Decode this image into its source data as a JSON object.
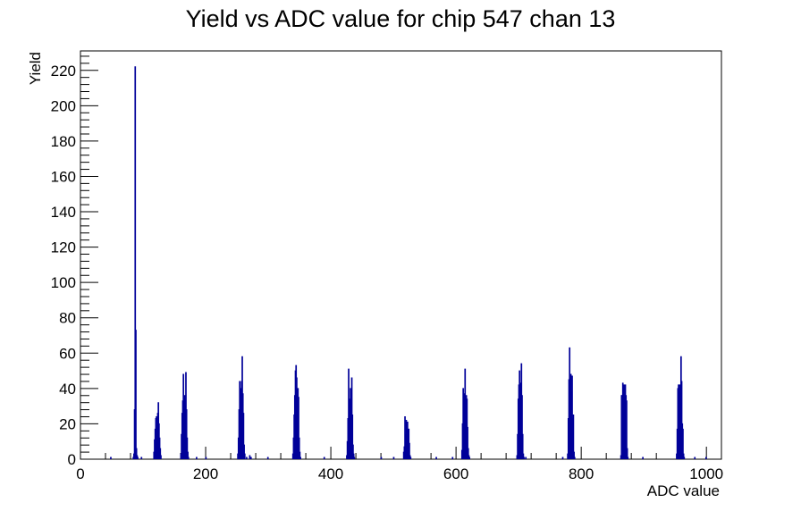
{
  "chart_data": {
    "type": "histogram",
    "title": "Yield vs ADC value for chip 547 chan 13",
    "xlabel": "ADC value",
    "ylabel": "Yield",
    "xlim": [
      0,
      1024
    ],
    "ylim": [
      0,
      231
    ],
    "xticks": [
      0,
      200,
      400,
      600,
      800,
      1000
    ],
    "yticks": [
      0,
      20,
      40,
      60,
      80,
      100,
      120,
      140,
      160,
      180,
      200,
      220
    ],
    "grid": false,
    "legend": "none",
    "line_color": "#000099",
    "bins": [
      [
        48,
        1
      ],
      [
        84,
        1
      ],
      [
        85,
        3
      ],
      [
        86,
        28
      ],
      [
        87,
        222
      ],
      [
        88,
        73
      ],
      [
        89,
        6
      ],
      [
        90,
        2
      ],
      [
        91,
        1
      ],
      [
        97,
        1
      ],
      [
        117,
        4
      ],
      [
        118,
        11
      ],
      [
        119,
        17
      ],
      [
        120,
        23
      ],
      [
        121,
        24
      ],
      [
        122,
        18
      ],
      [
        123,
        26
      ],
      [
        124,
        32
      ],
      [
        125,
        20
      ],
      [
        126,
        12
      ],
      [
        127,
        6
      ],
      [
        128,
        2
      ],
      [
        160,
        3
      ],
      [
        161,
        14
      ],
      [
        162,
        26
      ],
      [
        163,
        33
      ],
      [
        164,
        48
      ],
      [
        165,
        34
      ],
      [
        166,
        36
      ],
      [
        167,
        30
      ],
      [
        168,
        49
      ],
      [
        169,
        28
      ],
      [
        170,
        12
      ],
      [
        171,
        4
      ],
      [
        172,
        1
      ],
      [
        185,
        1
      ],
      [
        200,
        1
      ],
      [
        251,
        3
      ],
      [
        252,
        12
      ],
      [
        253,
        28
      ],
      [
        254,
        44
      ],
      [
        255,
        40
      ],
      [
        256,
        26
      ],
      [
        257,
        44
      ],
      [
        258,
        58
      ],
      [
        259,
        37
      ],
      [
        260,
        26
      ],
      [
        261,
        8
      ],
      [
        262,
        3
      ],
      [
        265,
        1
      ],
      [
        270,
        2
      ],
      [
        272,
        1
      ],
      [
        299,
        1
      ],
      [
        339,
        3
      ],
      [
        340,
        12
      ],
      [
        341,
        25
      ],
      [
        342,
        36
      ],
      [
        343,
        50
      ],
      [
        344,
        53
      ],
      [
        345,
        46
      ],
      [
        346,
        32
      ],
      [
        347,
        40
      ],
      [
        348,
        35
      ],
      [
        349,
        12
      ],
      [
        350,
        4
      ],
      [
        351,
        1
      ],
      [
        389,
        1
      ],
      [
        425,
        2
      ],
      [
        426,
        10
      ],
      [
        427,
        23
      ],
      [
        428,
        51
      ],
      [
        429,
        34
      ],
      [
        430,
        22
      ],
      [
        431,
        40
      ],
      [
        432,
        35
      ],
      [
        433,
        46
      ],
      [
        434,
        25
      ],
      [
        435,
        8
      ],
      [
        436,
        3
      ],
      [
        437,
        1
      ],
      [
        480,
        1
      ],
      [
        500,
        1
      ],
      [
        516,
        4
      ],
      [
        517,
        7
      ],
      [
        518,
        24
      ],
      [
        519,
        14
      ],
      [
        520,
        22
      ],
      [
        521,
        16
      ],
      [
        522,
        21
      ],
      [
        523,
        17
      ],
      [
        524,
        17
      ],
      [
        525,
        9
      ],
      [
        526,
        2
      ],
      [
        527,
        1
      ],
      [
        568,
        1
      ],
      [
        594,
        1
      ],
      [
        609,
        5
      ],
      [
        610,
        20
      ],
      [
        611,
        40
      ],
      [
        612,
        35
      ],
      [
        613,
        37
      ],
      [
        614,
        51
      ],
      [
        615,
        22
      ],
      [
        616,
        36
      ],
      [
        617,
        34
      ],
      [
        618,
        18
      ],
      [
        619,
        6
      ],
      [
        620,
        2
      ],
      [
        621,
        1
      ],
      [
        697,
        2
      ],
      [
        698,
        14
      ],
      [
        699,
        34
      ],
      [
        700,
        42
      ],
      [
        701,
        50
      ],
      [
        702,
        43
      ],
      [
        703,
        28
      ],
      [
        704,
        54
      ],
      [
        705,
        36
      ],
      [
        706,
        14
      ],
      [
        707,
        3
      ],
      [
        708,
        1
      ],
      [
        711,
        1
      ],
      [
        770,
        1
      ],
      [
        778,
        3
      ],
      [
        779,
        23
      ],
      [
        780,
        45
      ],
      [
        781,
        63
      ],
      [
        782,
        25
      ],
      [
        783,
        48
      ],
      [
        784,
        38
      ],
      [
        785,
        47
      ],
      [
        786,
        23
      ],
      [
        787,
        25
      ],
      [
        788,
        4
      ],
      [
        789,
        1
      ],
      [
        863,
        2
      ],
      [
        864,
        36
      ],
      [
        865,
        36
      ],
      [
        866,
        43
      ],
      [
        867,
        38
      ],
      [
        868,
        42
      ],
      [
        869,
        35
      ],
      [
        870,
        42
      ],
      [
        871,
        36
      ],
      [
        872,
        33
      ],
      [
        873,
        6
      ],
      [
        874,
        1
      ],
      [
        898,
        1
      ],
      [
        952,
        3
      ],
      [
        953,
        17
      ],
      [
        954,
        40
      ],
      [
        955,
        42
      ],
      [
        956,
        38
      ],
      [
        957,
        42
      ],
      [
        958,
        27
      ],
      [
        959,
        58
      ],
      [
        960,
        44
      ],
      [
        961,
        20
      ],
      [
        962,
        17
      ],
      [
        963,
        3
      ],
      [
        964,
        1
      ],
      [
        981,
        1
      ],
      [
        999,
        1
      ]
    ]
  }
}
